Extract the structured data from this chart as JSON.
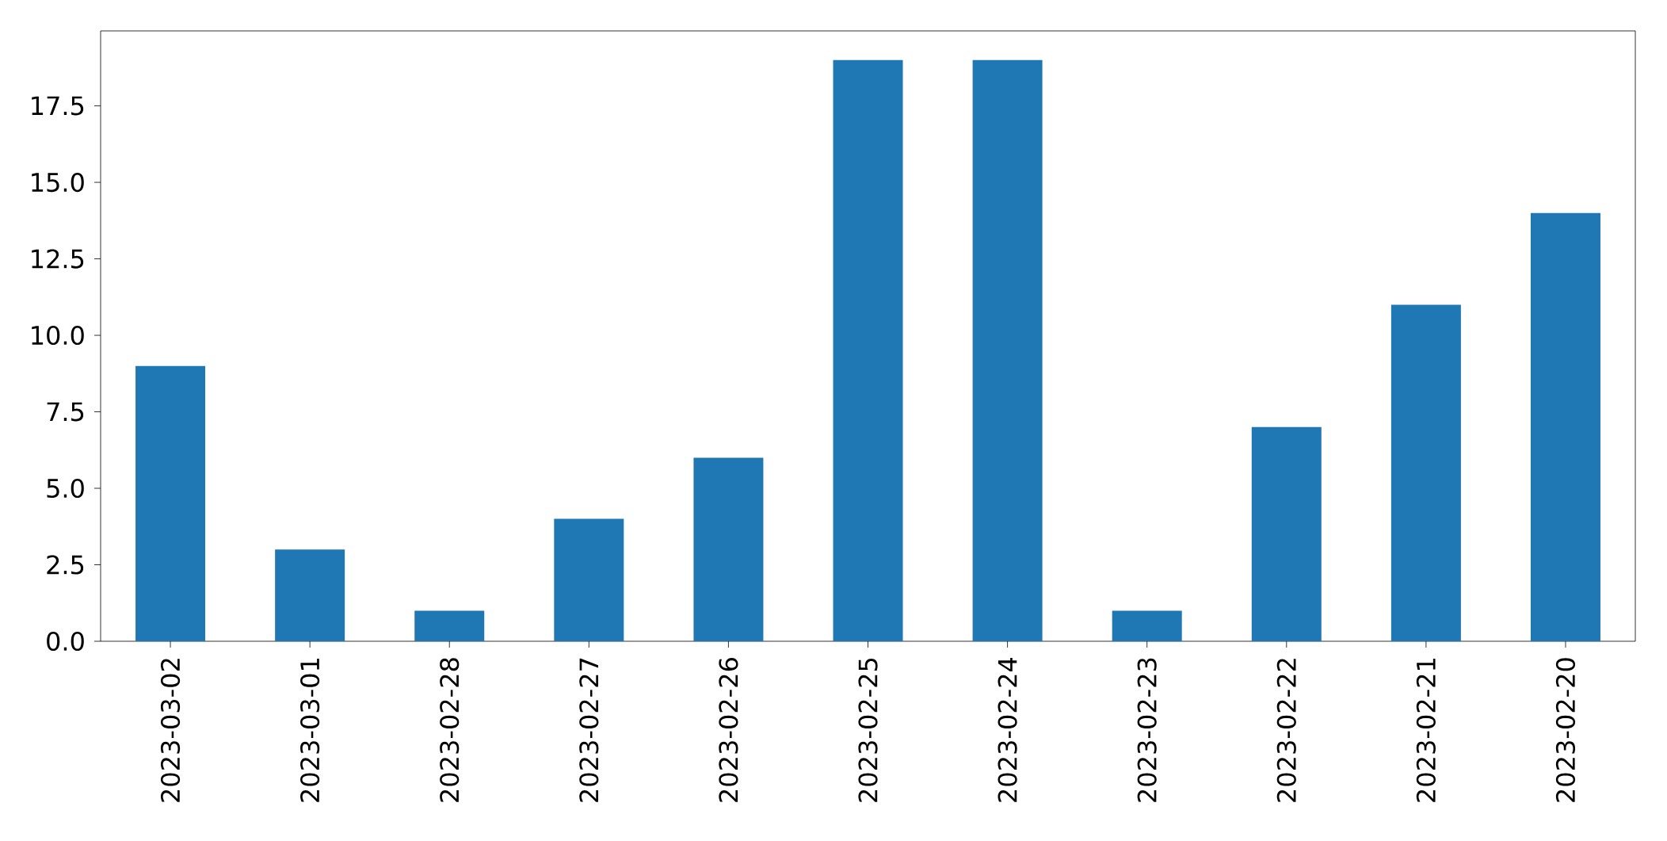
{
  "chart_data": {
    "type": "bar",
    "categories": [
      "2023-03-02",
      "2023-03-01",
      "2023-02-28",
      "2023-02-27",
      "2023-02-26",
      "2023-02-25",
      "2023-02-24",
      "2023-02-23",
      "2023-02-22",
      "2023-02-21",
      "2023-02-20"
    ],
    "values": [
      9,
      3,
      1,
      4,
      6,
      19,
      19,
      1,
      7,
      11,
      14
    ],
    "color": "#1f77b4",
    "ylim": [
      0,
      19.95
    ],
    "yticks": [
      {
        "value": 0,
        "label": "0.0"
      },
      {
        "value": 2.5,
        "label": "2.5"
      },
      {
        "value": 5,
        "label": "5.0"
      },
      {
        "value": 7.5,
        "label": "7.5"
      },
      {
        "value": 10,
        "label": "10.0"
      },
      {
        "value": 12.5,
        "label": "12.5"
      },
      {
        "value": 15,
        "label": "15.0"
      },
      {
        "value": 17.5,
        "label": "17.5"
      }
    ],
    "grid": false
  }
}
